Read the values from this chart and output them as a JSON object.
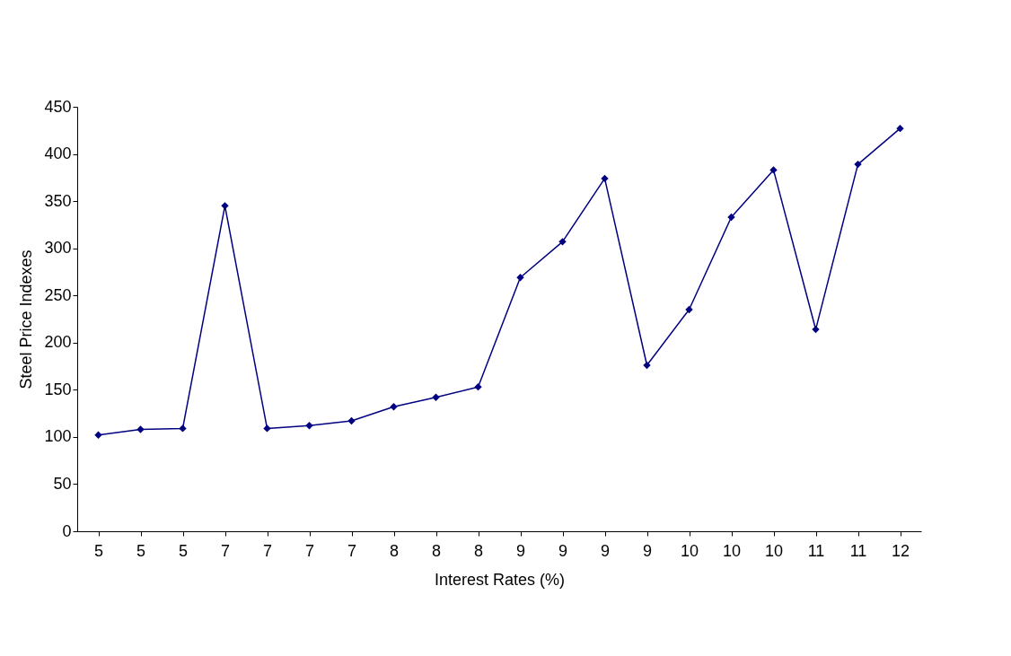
{
  "chart_data": {
    "type": "line",
    "xlabel": "Interest Rates (%)",
    "ylabel": "Steel Price Indexes",
    "categories": [
      "5",
      "5",
      "5",
      "7",
      "7",
      "7",
      "7",
      "8",
      "8",
      "8",
      "9",
      "9",
      "9",
      "9",
      "10",
      "10",
      "10",
      "11",
      "11",
      "12"
    ],
    "series": [
      {
        "color": "#000080",
        "values": [
          102,
          108,
          109,
          345,
          109,
          112,
          117,
          132,
          142,
          153,
          269,
          307,
          374,
          176,
          235,
          333,
          383,
          214,
          389,
          427
        ]
      }
    ],
    "ylim": [
      0,
      450
    ],
    "yticks": [
      0,
      50,
      100,
      150,
      200,
      250,
      300,
      350,
      400,
      450
    ],
    "grid": false,
    "marker": "diamond",
    "line_style": "solid"
  }
}
